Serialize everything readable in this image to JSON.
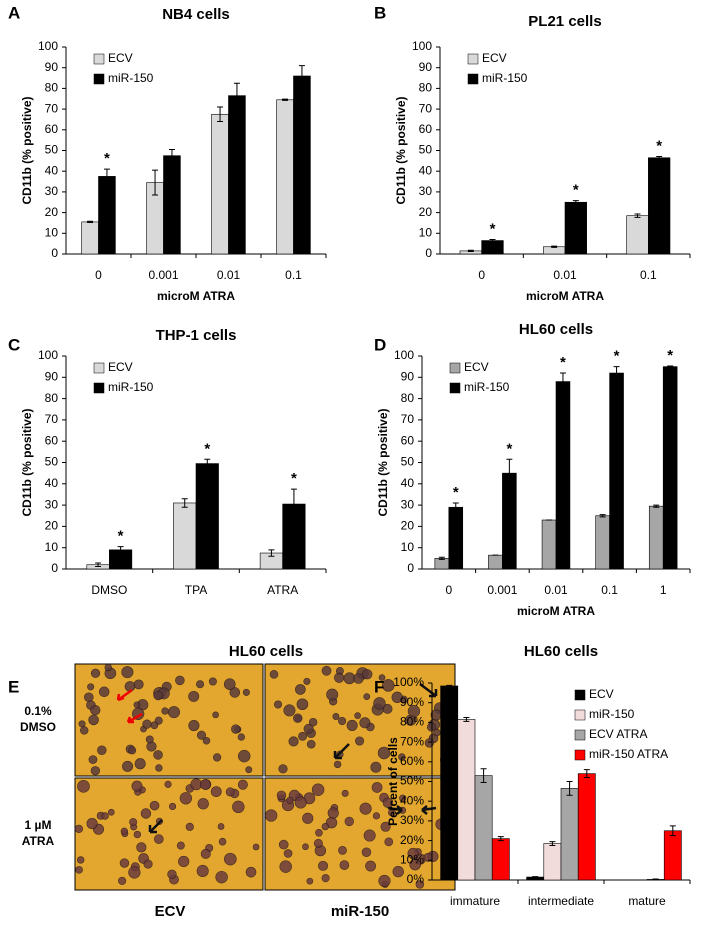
{
  "chart_data": [
    {
      "type": "bar",
      "panel": "A",
      "title": "NB4 cells",
      "ylabel": "CD11b (% positive)",
      "xlabel": "microM ATRA",
      "categories": [
        "0",
        "0.001",
        "0.01",
        "0.1"
      ],
      "series": [
        {
          "name": "ECV",
          "color": "#d9d9d9",
          "values": [
            15.5,
            34.5,
            67.5,
            74.5
          ],
          "errors": [
            0.3,
            6,
            3.5,
            0.3
          ]
        },
        {
          "name": "miR-150",
          "color": "#000000",
          "values": [
            37.5,
            47.5,
            76.5,
            86
          ],
          "errors": [
            3.5,
            3,
            6,
            5
          ]
        }
      ],
      "significance": [
        "*",
        null,
        null,
        null
      ],
      "ylim": [
        0,
        100
      ],
      "yticks": [
        0,
        10,
        20,
        30,
        40,
        50,
        60,
        70,
        80,
        90,
        100
      ],
      "legend": "upper left"
    },
    {
      "type": "bar",
      "panel": "B",
      "title": "PL21 cells",
      "ylabel": "CD11b (% positive)",
      "xlabel": "microM ATRA",
      "categories": [
        "0",
        "0.01",
        "0.1"
      ],
      "series": [
        {
          "name": "ECV",
          "color": "#d9d9d9",
          "values": [
            1.5,
            3.5,
            18.5
          ],
          "errors": [
            0.3,
            0.3,
            0.8
          ]
        },
        {
          "name": "miR-150",
          "color": "#000000",
          "values": [
            6.5,
            25,
            46.5
          ],
          "errors": [
            0.5,
            0.8,
            0.6
          ]
        }
      ],
      "significance": [
        "*",
        "*",
        "*"
      ],
      "ylim": [
        0,
        100
      ],
      "yticks": [
        0,
        10,
        20,
        30,
        40,
        50,
        60,
        70,
        80,
        90,
        100
      ],
      "legend": "upper left"
    },
    {
      "type": "bar",
      "panel": "C",
      "title": "THP-1 cells",
      "ylabel": "CD11b (% positive)",
      "categories": [
        "DMSO",
        "TPA",
        "ATRA"
      ],
      "series": [
        {
          "name": "ECV",
          "color": "#d9d9d9",
          "values": [
            2,
            31,
            7.5
          ],
          "errors": [
            0.8,
            2,
            1.5
          ]
        },
        {
          "name": "miR-150",
          "color": "#000000",
          "values": [
            9,
            49.5,
            30.5
          ],
          "errors": [
            1.5,
            2,
            7
          ]
        }
      ],
      "significance": [
        "*",
        "*",
        "*"
      ],
      "ylim": [
        0,
        100
      ],
      "yticks": [
        0,
        10,
        20,
        30,
        40,
        50,
        60,
        70,
        80,
        90,
        100
      ],
      "legend": "upper left"
    },
    {
      "type": "bar",
      "panel": "D",
      "title": "HL60 cells",
      "ylabel": "CD11b (% positive)",
      "xlabel": "microM ATRA",
      "categories": [
        "0",
        "0.001",
        "0.01",
        "0.1",
        "1"
      ],
      "series": [
        {
          "name": "ECV",
          "color": "#a6a6a6",
          "values": [
            5,
            6.5,
            23,
            25,
            29.5
          ],
          "errors": [
            0.5,
            0,
            0,
            0.5,
            0.5
          ]
        },
        {
          "name": "miR-150",
          "color": "#000000",
          "values": [
            29,
            45,
            88,
            92,
            95
          ],
          "errors": [
            2,
            6.5,
            4,
            3,
            0.3
          ]
        }
      ],
      "significance": [
        "*",
        "*",
        "*",
        "*",
        "*"
      ],
      "ylim": [
        0,
        100
      ],
      "yticks": [
        0,
        10,
        20,
        30,
        40,
        50,
        60,
        70,
        80,
        90,
        100
      ],
      "legend": "upper left"
    },
    {
      "type": "bar",
      "panel": "F",
      "title": "HL60 cells",
      "ylabel": "Percent of cells",
      "categories": [
        "immature",
        "intermediate",
        "mature"
      ],
      "series": [
        {
          "name": "ECV",
          "color": "#000000",
          "values": [
            98.5,
            1.5,
            0
          ],
          "errors": [
            0.3,
            0.2,
            0
          ]
        },
        {
          "name": "miR-150",
          "color": "#f2dcdb",
          "values": [
            81.5,
            18.5,
            0
          ],
          "errors": [
            1,
            1,
            0
          ]
        },
        {
          "name": "ECV ATRA",
          "color": "#a6a6a6",
          "values": [
            53,
            46.5,
            0.3
          ],
          "errors": [
            3.5,
            3.5,
            0.2
          ]
        },
        {
          "name": "miR-150 ATRA",
          "color": "#ff0000",
          "values": [
            21,
            54,
            25
          ],
          "errors": [
            1,
            2,
            2.5
          ]
        }
      ],
      "ylim": [
        0,
        100
      ],
      "yticks": [
        {
          "value": 0,
          "label": "0%"
        },
        {
          "value": 10,
          "label": "10%"
        },
        {
          "value": 20,
          "label": "20%"
        },
        {
          "value": 30,
          "label": "30%"
        },
        {
          "value": 40,
          "label": "40%"
        },
        {
          "value": 50,
          "label": "50%"
        },
        {
          "value": 60,
          "label": "60%"
        },
        {
          "value": 70,
          "label": "70%"
        },
        {
          "value": 80,
          "label": "80%"
        },
        {
          "value": 90,
          "label": "90%"
        },
        {
          "value": 100,
          "label": "100%"
        }
      ],
      "legend": "upper right"
    }
  ],
  "micrograph": {
    "panel": "E",
    "title": "HL60 cells",
    "row_labels": [
      [
        "0.1%",
        "DMSO"
      ],
      [
        "1 µM",
        "ATRA"
      ]
    ],
    "col_labels": [
      "ECV",
      "miR-150"
    ]
  }
}
